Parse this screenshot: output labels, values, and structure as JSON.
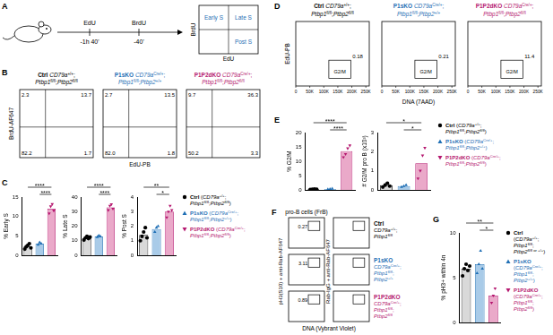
{
  "panels": {
    "A": {
      "letter": "A",
      "timeline": [
        {
          "label": "EdU",
          "time": "-1h 40'"
        },
        {
          "label": "BrdU",
          "time": "-40'"
        }
      ],
      "quadrants": {
        "early": "Early S",
        "late": "Late S",
        "post": "Post S"
      },
      "y_label": "BrdU",
      "x_label": "EdU"
    },
    "B": {
      "letter": "B",
      "y_label": "BrdU-AF647",
      "x_label": "EdU-PB",
      "plots": [
        {
          "name": "Ctrl",
          "genotype": "CD79a+/+;Ptbp1fl/fl;Ptbp2fl/fl",
          "color": "#000000",
          "quadrants": {
            "top_left": 2.3,
            "top_right": 13.7,
            "bottom_left": 82.2,
            "bottom_right": 1.7
          }
        },
        {
          "name": "P1sKO",
          "genotype": "CD79aCre/+;Ptbp1fl/fl;Ptbp2+/+",
          "color": "#1f6fb5",
          "quadrants": {
            "top_left": 2.7,
            "top_right": 13.5,
            "bottom_left": 82.0,
            "bottom_right": 1.8
          }
        },
        {
          "name": "P1P2dKO",
          "genotype": "CD79aCre/+;Ptbp1fl/fl;Ptbp2fl/fl",
          "color": "#b5176f",
          "quadrants": {
            "top_left": 9.7,
            "top_right": 36.3,
            "bottom_left": 50.2,
            "bottom_right": 3.3
          }
        }
      ]
    },
    "D": {
      "letter": "D",
      "y_label": "EdU-PB",
      "x_label": "DNA (7AAD)",
      "xlim": [
        0,
        262144
      ],
      "xticks": [
        0,
        {
          "value": 50000,
          "label": "50K"
        },
        {
          "value": 100000,
          "label": "100K"
        },
        {
          "value": 150000,
          "label": "150K"
        },
        {
          "value": 200000,
          "label": "200K"
        },
        {
          "value": 250000,
          "label": "250K"
        }
      ],
      "gate_label": "G2/M",
      "plots": [
        {
          "name": "Ctrl",
          "genotype": "CD79a+/+;Ptbp1fl/fl;Ptbp2fl/fl",
          "color": "#000000",
          "gate": 0.18
        },
        {
          "name": "P1sKO",
          "genotype": "CD79aCre/+;Ptbp1fl/fl;Ptbp2+/+",
          "color": "#1f6fb5",
          "gate": 0.21
        },
        {
          "name": "P1P2dKO",
          "genotype": "CD79aCre/+;Ptbp1fl/fl;Ptbp2fl/fl",
          "color": "#b5176f",
          "gate": 11.4
        }
      ]
    },
    "F": {
      "letter": "F",
      "title": "pro-B cells (FrB)",
      "y_label": "pH3(S10) + anti-Rab-AF647",
      "y_label_right": "Rab-IgG + anti-Rab-AF647",
      "x_label": "DNA (Vybrant Violet)",
      "rows": [
        {
          "name": "Ctrl",
          "genotype": "CD79a+/+;Ptbp1fl/fl",
          "color": "#000000",
          "gate": 0.27
        },
        {
          "name": "P1sKO",
          "genotype": "CD79aCre/+;Ptbp1fl/fl;Ptbp2+/+",
          "color": "#1f6fb5",
          "gate": 3.11
        },
        {
          "name": "P1P2dKO",
          "genotype": "CD79aCre/+;Ptbp1fl/fl;Ptbp2fl/fl",
          "color": "#b5176f",
          "gate": 0.89
        }
      ]
    }
  },
  "legends": {
    "C": [
      {
        "name": "Ctrl",
        "genotype": "(CD79a+/+;Ptbp1fl/fl;Ptbp2fl/fl)",
        "color": "#000000",
        "marker": "circle"
      },
      {
        "name": "P1sKO",
        "genotype": "(CD79aCre/+;Ptbp1fl/fl;Ptbp2+/+)",
        "color": "#1f6fb5",
        "marker": "triangle"
      },
      {
        "name": "P1P2dKO",
        "genotype": "(CD79aCre/+;Ptbp1fl/fl;Ptbp2fl/fl)",
        "color": "#b5176f",
        "marker": "triangle-down"
      }
    ],
    "E": [
      {
        "name": "Ctrl",
        "genotype": "(CD79a+/+;Ptbp1fl/fl;Ptbp2fl/fl)",
        "color": "#000000",
        "marker": "circle"
      },
      {
        "name": "P1sKO",
        "genotype": "(CD79aCre/+;Ptbp1fl/fl;Ptbp2+/+)",
        "color": "#1f6fb5",
        "marker": "triangle"
      },
      {
        "name": "P1P2dKO",
        "genotype": "(CD79aCre/+;Ptbp1fl/fl;Ptbp2fl/fl)",
        "color": "#b5176f",
        "marker": "triangle-down"
      }
    ],
    "G": [
      {
        "name": "Ctrl",
        "genotype": "(CD79a+/+;Ptbp1fl/fl;Ptbp2fl/fl or +/+)",
        "color": "#000000",
        "marker": "circle"
      },
      {
        "name": "P1sKO",
        "genotype": "(CD79aCre/+;Ptbp1fl/fl;Ptbp2+/+)",
        "color": "#1f6fb5",
        "marker": "triangle"
      },
      {
        "name": "P1P2dKO",
        "genotype": "(CD79aCre/+;Ptbp1fl/fl;Ptbp2fl/fl)",
        "color": "#b5176f",
        "marker": "triangle-down"
      }
    ]
  },
  "chart_data": [
    {
      "type": "bar",
      "letter": "C",
      "y_label": "% Early S",
      "categories": [
        null,
        null,
        null
      ],
      "values": [
        2.3,
        3.0,
        12.0
      ],
      "points": [
        [
          1.6,
          2.2,
          2.6,
          3.0,
          1.9
        ],
        [
          2.7,
          3.3,
          3.0
        ],
        [
          10.8,
          12.6,
          13.2,
          11.5
        ]
      ],
      "colors": [
        "#d9d9d9",
        "#a9cbe8",
        "#eaa9c9"
      ],
      "ylim": [
        0,
        15
      ],
      "yticks": [
        0,
        5,
        10,
        15
      ],
      "grid": false,
      "tick_labels": "y",
      "annotations": [
        {
          "text": "****",
          "between": [
            0,
            2
          ]
        },
        {
          "text": "****",
          "between": [
            1,
            2
          ]
        }
      ]
    },
    {
      "type": "bar",
      "y_label": "% Late S",
      "categories": [
        null,
        null,
        null
      ],
      "values": [
        12,
        13,
        33
      ],
      "points": [
        [
          10.5,
          12,
          13,
          11.5,
          12.5
        ],
        [
          12.5,
          13.5,
          13
        ],
        [
          31,
          34,
          35,
          32
        ]
      ],
      "colors": [
        "#d9d9d9",
        "#a9cbe8",
        "#eaa9c9"
      ],
      "ylim": [
        0,
        40
      ],
      "yticks": [
        0,
        10,
        20,
        30,
        40
      ],
      "grid": false,
      "tick_labels": "y",
      "annotations": [
        {
          "text": "****",
          "between": [
            0,
            2
          ]
        },
        {
          "text": "****",
          "between": [
            1,
            2
          ]
        }
      ]
    },
    {
      "type": "bar",
      "y_label": "% Post S",
      "categories": [
        null,
        null,
        null
      ],
      "values": [
        1.4,
        1.8,
        3.0
      ],
      "points": [
        [
          1.0,
          1.3,
          1.6,
          1.9,
          1.2
        ],
        [
          1.6,
          1.9,
          2.0
        ],
        [
          2.6,
          3.0,
          3.4,
          3.1
        ]
      ],
      "colors": [
        "#d9d9d9",
        "#a9cbe8",
        "#eaa9c9"
      ],
      "ylim": [
        0,
        4
      ],
      "yticks": [
        0,
        1,
        2,
        3,
        4
      ],
      "grid": false,
      "tick_labels": "y",
      "annotations": [
        {
          "text": "**",
          "between": [
            0,
            2
          ]
        },
        {
          "text": "*",
          "between": [
            1,
            2
          ]
        }
      ]
    },
    {
      "type": "bar",
      "letter": "E",
      "y_label": "% G2/M",
      "categories": [
        null,
        null,
        null
      ],
      "values": [
        0.2,
        0.3,
        13.5
      ],
      "points": [
        [
          0.1,
          0.2,
          0.3,
          0.2
        ],
        [
          0.2,
          0.3,
          0.4
        ],
        [
          11.4,
          12.5,
          14.5,
          15.5
        ]
      ],
      "colors": [
        "#d9d9d9",
        "#a9cbe8",
        "#eaa9c9"
      ],
      "ylim": [
        0,
        20
      ],
      "yticks": [
        0,
        5,
        10,
        15,
        20
      ],
      "grid": false,
      "tick_labels": "y",
      "annotations": [
        {
          "text": "****",
          "between": [
            0,
            2
          ]
        },
        {
          "text": "****",
          "between": [
            1,
            2
          ]
        }
      ]
    },
    {
      "type": "bar",
      "y_label": "# G2/M pro B (x10³)",
      "categories": [
        null,
        null,
        null
      ],
      "values": [
        0.25,
        0.2,
        1.4
      ],
      "points": [
        [
          0.15,
          0.25,
          0.35,
          0.2
        ],
        [
          0.15,
          0.2,
          0.25
        ],
        [
          0.6,
          1.0,
          1.8,
          2.2
        ]
      ],
      "colors": [
        "#d9d9d9",
        "#a9cbe8",
        "#eaa9c9"
      ],
      "ylim": [
        0,
        3
      ],
      "yticks": [
        0,
        1,
        2,
        3
      ],
      "grid": false,
      "tick_labels": "y",
      "annotations": [
        {
          "text": "*",
          "between": [
            0,
            2
          ]
        },
        {
          "text": "*",
          "between": [
            1,
            2
          ]
        }
      ]
    },
    {
      "type": "bar",
      "letter": "G",
      "y_label": "% pH3+ within 4n",
      "categories": [
        null,
        null,
        null
      ],
      "values": [
        6,
        6.5,
        3
      ],
      "points": [
        [
          5.2,
          6,
          6.5,
          5.8,
          6.3
        ],
        [
          5.5,
          6.5,
          8,
          6
        ],
        [
          2.2,
          3,
          3.8
        ]
      ],
      "colors": [
        "#d9d9d9",
        "#a9cbe8",
        "#eaa9c9"
      ],
      "ylim": [
        0,
        10
      ],
      "yticks": [
        0,
        5,
        10
      ],
      "grid": false,
      "tick_labels": "y",
      "annotations": [
        {
          "text": "**",
          "between": [
            0,
            2
          ]
        },
        {
          "text": "*",
          "between": [
            1,
            2
          ]
        }
      ]
    }
  ]
}
